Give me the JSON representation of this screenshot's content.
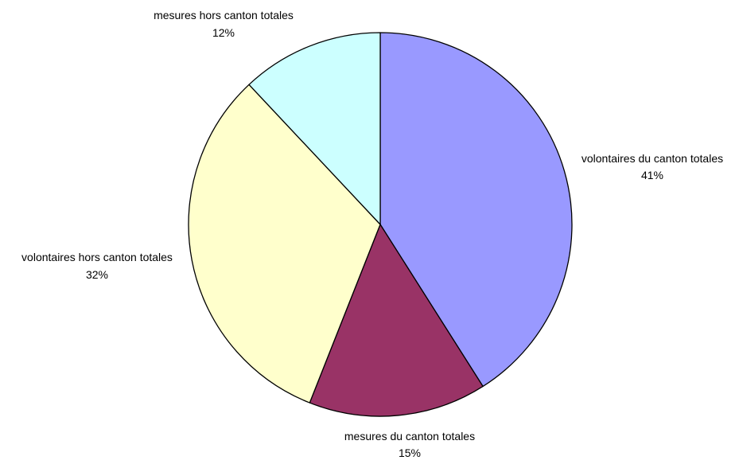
{
  "chart_data": {
    "type": "pie",
    "start_angle_deg": 0,
    "direction": "clockwise",
    "slices": [
      {
        "label": "volontaires du canton totales",
        "value": 41,
        "percent_label": "41%",
        "color": "#9999FF"
      },
      {
        "label": "mesures du canton totales",
        "value": 15,
        "percent_label": "15%",
        "color": "#993366"
      },
      {
        "label": "volontaires hors canton totales",
        "value": 32,
        "percent_label": "32%",
        "color": "#FFFFCC"
      },
      {
        "label": "mesures hors canton totales",
        "value": 12,
        "percent_label": "12%",
        "color": "#CCFFFF"
      }
    ],
    "stroke_color": "#000000"
  }
}
